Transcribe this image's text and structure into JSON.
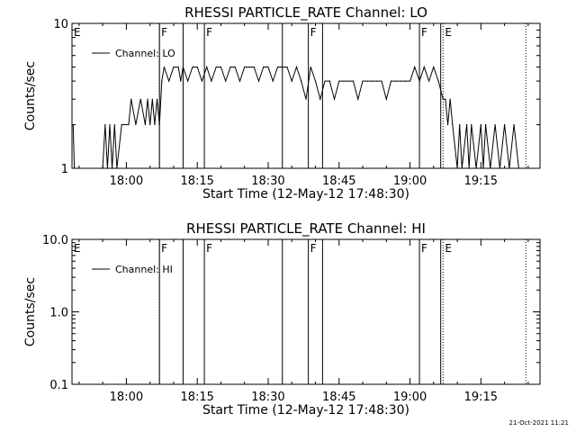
{
  "footer_timestamp": "21-Oct-2021 11:21",
  "chart_data": [
    {
      "type": "line",
      "title": "RHESSI PARTICLE_RATE Channel: LO",
      "xlabel": "Start Time (12-May-12 17:48:30)",
      "ylabel": "Counts/sec",
      "yscale": "log",
      "ylim": [
        1,
        10
      ],
      "y_ticks": [
        {
          "v": 1,
          "label": "1"
        },
        {
          "v": 10,
          "label": "10"
        }
      ],
      "xlim": [
        "17:48:30",
        "19:27:30"
      ],
      "x_ticks": [
        "18:00",
        "18:15",
        "18:30",
        "18:45",
        "19:00",
        "19:15"
      ],
      "legend": {
        "position": "top-left",
        "entries": [
          "Channel: LO"
        ]
      },
      "markers": [
        {
          "t": "17:48:30",
          "label": "E",
          "style": "dotted"
        },
        {
          "t": "18:07:00",
          "label": "",
          "style": "dotted"
        },
        {
          "t": "18:07:00",
          "label": "F",
          "style": "solid"
        },
        {
          "t": "18:12:00",
          "label": "",
          "style": "solid"
        },
        {
          "t": "18:16:30",
          "label": "F",
          "style": "solid"
        },
        {
          "t": "18:33:00",
          "label": "",
          "style": "solid"
        },
        {
          "t": "18:38:30",
          "label": "F",
          "style": "solid"
        },
        {
          "t": "18:41:30",
          "label": "",
          "style": "solid"
        },
        {
          "t": "19:02:00",
          "label": "F",
          "style": "solid"
        },
        {
          "t": "19:06:30",
          "label": "",
          "style": "solid"
        },
        {
          "t": "19:07:00",
          "label": "E",
          "style": "dotted"
        },
        {
          "t": "19:24:30",
          "label": "",
          "style": "dotted"
        }
      ],
      "series": [
        {
          "name": "Channel: LO",
          "color": "#000000",
          "x": [
            "17:48:30",
            "17:48:45",
            "17:49:00",
            "17:50:00",
            "17:55:00",
            "17:55:30",
            "17:56:00",
            "17:56:30",
            "17:57:00",
            "17:57:30",
            "17:58:00",
            "17:59:00",
            "18:00:00",
            "18:00:30",
            "18:01:00",
            "18:02:00",
            "18:03:00",
            "18:04:00",
            "18:04:30",
            "18:05:00",
            "18:05:30",
            "18:06:00",
            "18:06:30",
            "18:07:00",
            "18:07:30",
            "18:08:00",
            "18:09:00",
            "18:10:00",
            "18:11:00",
            "18:11:30",
            "18:12:00",
            "18:13:00",
            "18:14:00",
            "18:15:00",
            "18:16:00",
            "18:17:00",
            "18:18:00",
            "18:19:00",
            "18:20:00",
            "18:21:00",
            "18:22:00",
            "18:23:00",
            "18:24:00",
            "18:25:00",
            "18:26:00",
            "18:27:00",
            "18:28:00",
            "18:29:00",
            "18:30:00",
            "18:31:00",
            "18:32:00",
            "18:33:00",
            "18:34:00",
            "18:35:00",
            "18:36:00",
            "18:37:00",
            "18:38:00",
            "18:39:00",
            "18:40:00",
            "18:41:00",
            "18:42:00",
            "18:43:00",
            "18:44:00",
            "18:45:00",
            "18:46:00",
            "18:47:00",
            "18:48:00",
            "18:49:00",
            "18:50:00",
            "18:51:00",
            "18:52:00",
            "18:53:00",
            "18:54:00",
            "18:55:00",
            "18:56:00",
            "18:57:00",
            "18:58:00",
            "18:59:00",
            "19:00:00",
            "19:01:00",
            "19:02:00",
            "19:03:00",
            "19:04:00",
            "19:05:00",
            "19:06:00",
            "19:07:00",
            "19:07:30",
            "19:08:00",
            "19:08:30",
            "19:09:00",
            "19:10:00",
            "19:10:30",
            "19:11:00",
            "19:12:00",
            "19:12:30",
            "19:13:00",
            "19:14:00",
            "19:15:00",
            "19:15:30",
            "19:16:00",
            "19:17:00",
            "19:18:00",
            "19:19:00",
            "19:20:00",
            "19:21:00",
            "19:22:00",
            "19:23:00",
            "19:24:00"
          ],
          "y": [
            2,
            2,
            1,
            1,
            1,
            2,
            1,
            2,
            1,
            2,
            1,
            2,
            2,
            2,
            3,
            2,
            3,
            2,
            3,
            2,
            3,
            2,
            3,
            2,
            4,
            5,
            4,
            5,
            5,
            4,
            5,
            4,
            5,
            5,
            4,
            5,
            4,
            5,
            5,
            4,
            5,
            5,
            4,
            5,
            5,
            5,
            4,
            5,
            5,
            4,
            5,
            5,
            5,
            4,
            5,
            4,
            3,
            5,
            4,
            3,
            4,
            4,
            3,
            4,
            4,
            4,
            4,
            3,
            4,
            4,
            4,
            4,
            4,
            3,
            4,
            4,
            4,
            4,
            4,
            5,
            4,
            5,
            4,
            5,
            4,
            3,
            3,
            2,
            3,
            2,
            1,
            2,
            1,
            2,
            1,
            2,
            1,
            2,
            1,
            2,
            1,
            2,
            1,
            2,
            1,
            2,
            1,
            1
          ]
        }
      ]
    },
    {
      "type": "line",
      "title": "RHESSI PARTICLE_RATE Channel: HI",
      "xlabel": "Start Time (12-May-12 17:48:30)",
      "ylabel": "Counts/sec",
      "yscale": "log",
      "ylim": [
        0.1,
        10
      ],
      "y_ticks": [
        {
          "v": 0.1,
          "label": "0.1"
        },
        {
          "v": 1,
          "label": "1.0"
        },
        {
          "v": 10,
          "label": "10.0"
        }
      ],
      "xlim": [
        "17:48:30",
        "19:27:30"
      ],
      "x_ticks": [
        "18:00",
        "18:15",
        "18:30",
        "18:45",
        "19:00",
        "19:15"
      ],
      "legend": {
        "position": "top-left",
        "entries": [
          "Channel: HI"
        ]
      },
      "markers": [
        {
          "t": "17:48:30",
          "label": "E",
          "style": "dotted"
        },
        {
          "t": "18:07:00",
          "label": "",
          "style": "dotted"
        },
        {
          "t": "18:07:00",
          "label": "F",
          "style": "solid"
        },
        {
          "t": "18:12:00",
          "label": "",
          "style": "solid"
        },
        {
          "t": "18:16:30",
          "label": "F",
          "style": "solid"
        },
        {
          "t": "18:33:00",
          "label": "",
          "style": "solid"
        },
        {
          "t": "18:38:30",
          "label": "F",
          "style": "solid"
        },
        {
          "t": "18:41:30",
          "label": "",
          "style": "solid"
        },
        {
          "t": "19:02:00",
          "label": "F",
          "style": "solid"
        },
        {
          "t": "19:06:30",
          "label": "",
          "style": "solid"
        },
        {
          "t": "19:07:00",
          "label": "E",
          "style": "dotted"
        },
        {
          "t": "19:24:30",
          "label": "",
          "style": "dotted"
        }
      ],
      "series": [
        {
          "name": "Channel: HI",
          "color": "#000000",
          "x": [],
          "y": []
        }
      ]
    }
  ]
}
